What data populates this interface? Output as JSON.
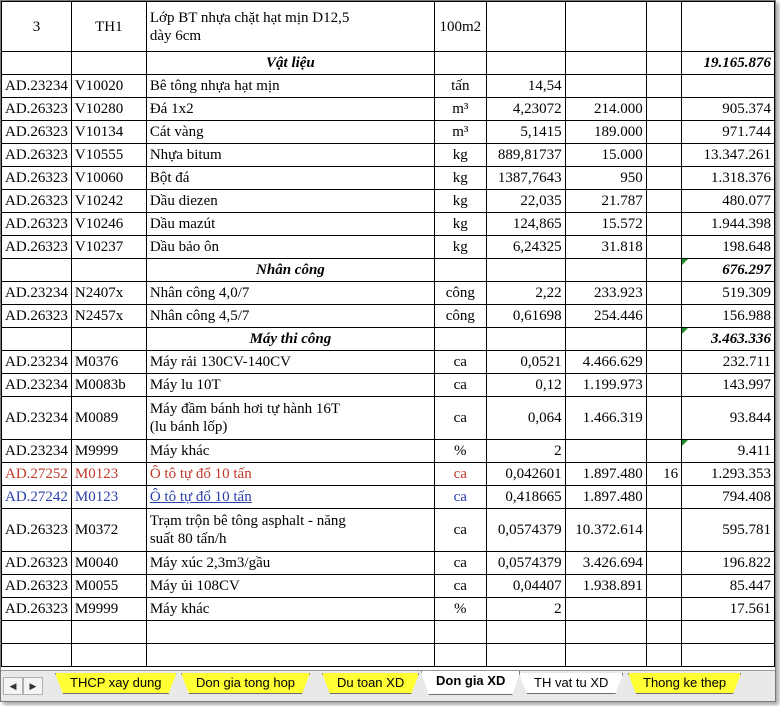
{
  "header_row": {
    "stt": "3",
    "code": "TH1",
    "desc_line1": "Lớp BT nhựa chặt hạt mịn D12,5",
    "desc_line2": "dày 6cm",
    "unit": "100m2"
  },
  "sections": {
    "vat_lieu": {
      "title": "Vật liệu",
      "total": "19.165.876"
    },
    "nhan_cong": {
      "title": "Nhân công",
      "total": "676.297"
    },
    "may_thi_cong": {
      "title": "Máy thi công",
      "total": "3.463.336"
    }
  },
  "rows": [
    {
      "ma": "AD.23234",
      "mvt": "V10020",
      "ten": "Bê tông nhựa hạt mịn",
      "dv": "tấn",
      "kl": "14,54",
      "dg": "",
      "hs": "",
      "tt": ""
    },
    {
      "ma": "AD.26323",
      "mvt": "V10280",
      "ten": "Đá 1x2",
      "dv": "m³",
      "kl": "4,23072",
      "dg": "214.000",
      "hs": "",
      "tt": "905.374"
    },
    {
      "ma": "AD.26323",
      "mvt": "V10134",
      "ten": "Cát vàng",
      "dv": "m³",
      "kl": "5,1415",
      "dg": "189.000",
      "hs": "",
      "tt": "971.744"
    },
    {
      "ma": "AD.26323",
      "mvt": "V10555",
      "ten": "Nhựa bitum",
      "dv": "kg",
      "kl": "889,81737",
      "dg": "15.000",
      "hs": "",
      "tt": "13.347.261"
    },
    {
      "ma": "AD.26323",
      "mvt": "V10060",
      "ten": "Bột đá",
      "dv": "kg",
      "kl": "1387,7643",
      "dg": "950",
      "hs": "",
      "tt": "1.318.376"
    },
    {
      "ma": "AD.26323",
      "mvt": "V10242",
      "ten": "Dầu diezen",
      "dv": "kg",
      "kl": "22,035",
      "dg": "21.787",
      "hs": "",
      "tt": "480.077"
    },
    {
      "ma": "AD.26323",
      "mvt": "V10246",
      "ten": "Dầu mazút",
      "dv": "kg",
      "kl": "124,865",
      "dg": "15.572",
      "hs": "",
      "tt": "1.944.398"
    },
    {
      "ma": "AD.26323",
      "mvt": "V10237",
      "ten": "Dầu bảo ôn",
      "dv": "kg",
      "kl": "6,24325",
      "dg": "31.818",
      "hs": "",
      "tt": "198.648"
    },
    {
      "ma": "AD.23234",
      "mvt": "N2407x",
      "ten": "Nhân công 4,0/7",
      "dv": "công",
      "kl": "2,22",
      "dg": "233.923",
      "hs": "",
      "tt": "519.309"
    },
    {
      "ma": "AD.26323",
      "mvt": "N2457x",
      "ten": "Nhân công 4,5/7",
      "dv": "công",
      "kl": "0,61698",
      "dg": "254.446",
      "hs": "",
      "tt": "156.988"
    },
    {
      "ma": "AD.23234",
      "mvt": "M0376",
      "ten": "Máy rải 130CV-140CV",
      "dv": "ca",
      "kl": "0,0521",
      "dg": "4.466.629",
      "hs": "",
      "tt": "232.711"
    },
    {
      "ma": "AD.23234",
      "mvt": "M0083b",
      "ten": "Máy lu 10T",
      "dv": "ca",
      "kl": "0,12",
      "dg": "1.199.973",
      "hs": "",
      "tt": "143.997"
    },
    {
      "ma": "AD.23234",
      "mvt": "M0089",
      "ten1": "Máy đầm bánh hơi tự hành 16T",
      "ten2": "(lu bánh lốp)",
      "dv": "ca",
      "kl": "0,064",
      "dg": "1.466.319",
      "hs": "",
      "tt": "93.844"
    },
    {
      "ma": "AD.23234",
      "mvt": "M9999",
      "ten": "Máy khác",
      "dv": "%",
      "kl": "2",
      "dg": "",
      "hs": "",
      "tt": "9.411"
    },
    {
      "ma": "AD.27252",
      "mvt": "M0123",
      "ten": "Ô tô tự đổ 10 tấn",
      "dv": "ca",
      "kl": "0,042601",
      "dg": "1.897.480",
      "hs": "16",
      "tt": "1.293.353"
    },
    {
      "ma": "AD.27242",
      "mvt": "M0123",
      "ten": "Ô tô tự đổ 10 tấn",
      "dv": "ca",
      "kl": "0,418665",
      "dg": "1.897.480",
      "hs": "",
      "tt": "794.408"
    },
    {
      "ma": "AD.26323",
      "mvt": "M0372",
      "ten1": "Trạm trộn bê tông asphalt - năng",
      "ten2": "suất 80 tấn/h",
      "dv": "ca",
      "kl": "0,0574379",
      "dg": "10.372.614",
      "hs": "",
      "tt": "595.781"
    },
    {
      "ma": "AD.26323",
      "mvt": "M0040",
      "ten": "Máy xúc 2,3m3/gầu",
      "dv": "ca",
      "kl": "0,0574379",
      "dg": "3.426.694",
      "hs": "",
      "tt": "196.822"
    },
    {
      "ma": "AD.26323",
      "mvt": "M0055",
      "ten": "Máy ủi 108CV",
      "dv": "ca",
      "kl": "0,04407",
      "dg": "1.938.891",
      "hs": "",
      "tt": "85.447"
    },
    {
      "ma": "AD.26323",
      "mvt": "M9999",
      "ten": "Máy khác",
      "dv": "%",
      "kl": "2",
      "dg": "",
      "hs": "",
      "tt": "17.561"
    }
  ],
  "sheet_tabs": {
    "nav_first": "◀",
    "nav_last": "▶",
    "tab1": "THCP xay dung",
    "tab2": "Don gia tong hop",
    "tab3": "Du toan XD",
    "tab4": "Don gia XD",
    "tab5": "TH vat tu XD",
    "tab6": "Thong ke thep"
  },
  "colors": {
    "tab_yellow": "#ffff33",
    "red_row": "#c0392b",
    "blue_row": "#2a3fa8",
    "comment_marker": "#1a8f2a"
  }
}
